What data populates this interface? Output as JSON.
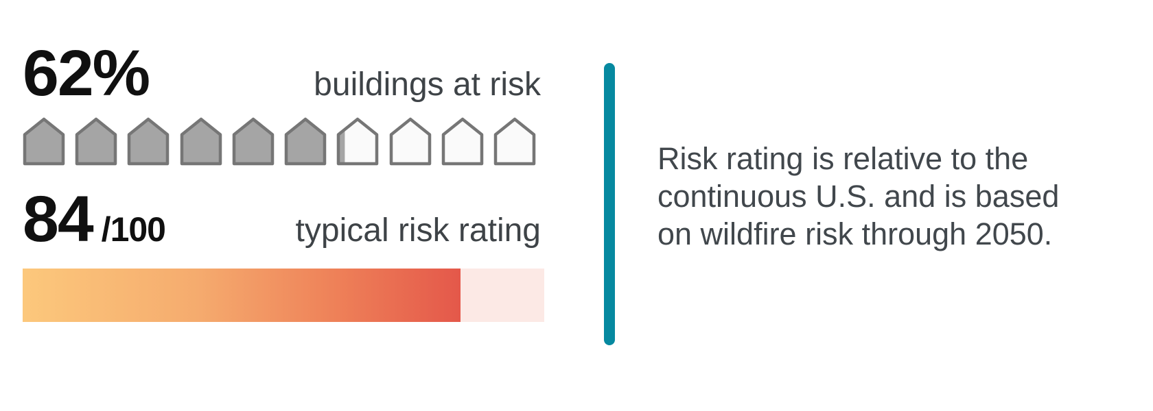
{
  "stats": {
    "buildings": {
      "value": "62%",
      "label": "buildings at risk"
    },
    "rating": {
      "value": "84",
      "denominator": "/100",
      "label": "typical risk rating"
    }
  },
  "houses": {
    "total": 10,
    "filled": 6.2
  },
  "risk_bar": {
    "percent": 84,
    "max": 100
  },
  "note": {
    "lines": [
      "Risk rating is relative to the",
      "continuous U.S. and is based",
      "on wildfire risk through 2050."
    ]
  },
  "colors": {
    "number_text": "#101010",
    "label_text": "#3e4347",
    "note_text": "#41474c",
    "accent_teal": "#0689a0",
    "bar_track_pink": "#fce9e5",
    "bar_gradient": [
      "#fcc87c",
      "#f5ab6e",
      "#ee8058",
      "#e4584a"
    ],
    "house_filled": "#a5a5a5",
    "house_empty": "#fafafa",
    "house_stroke": "#767676"
  },
  "chart_data": [
    {
      "type": "bar",
      "title": "buildings at risk",
      "categories": [
        "buildings at risk"
      ],
      "values": [
        62
      ],
      "unit": "%",
      "ylim": [
        0,
        100
      ],
      "style": "pictograph of 10 house icons, 6.2 filled"
    },
    {
      "type": "bar",
      "title": "typical risk rating",
      "categories": [
        "typical risk rating"
      ],
      "values": [
        84
      ],
      "unit": "/100",
      "ylim": [
        0,
        100
      ],
      "style": "horizontal gradient progress bar yellow to red on pink track"
    }
  ]
}
